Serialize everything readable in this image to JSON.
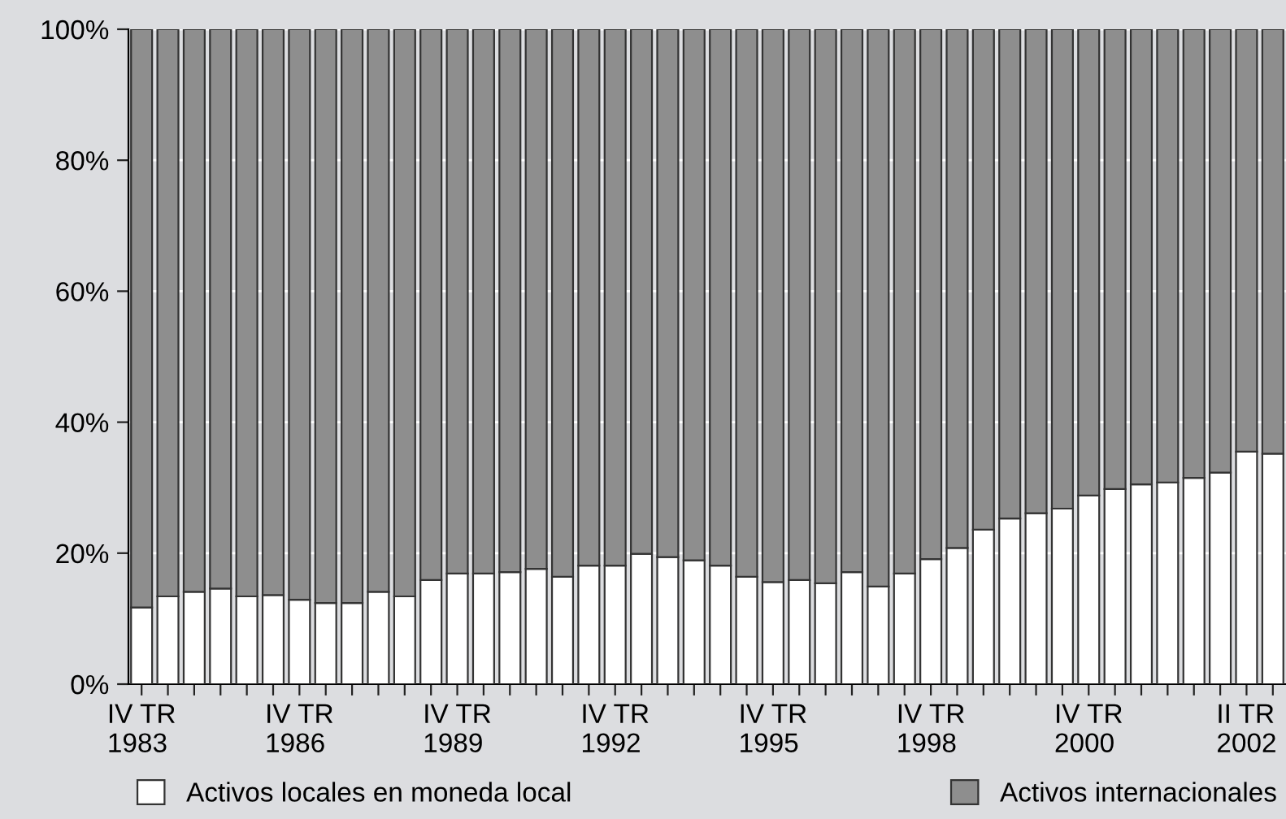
{
  "chart_data": {
    "type": "bar",
    "stacked": true,
    "categories": [
      "IV TR\n1983",
      null,
      null,
      null,
      null,
      null,
      "IV TR\n1986",
      null,
      null,
      null,
      null,
      null,
      "IV TR\n1989",
      null,
      null,
      null,
      null,
      null,
      "IV TR\n1992",
      null,
      null,
      null,
      null,
      null,
      "IV TR\n1995",
      null,
      null,
      null,
      null,
      null,
      "IV TR\n1998",
      null,
      null,
      null,
      null,
      null,
      "IV TR\n2000",
      null,
      null,
      null,
      null,
      null,
      "II TR\n2002",
      null
    ],
    "series": [
      {
        "name": "Activos locales en moneda local",
        "color": "#ffffff",
        "values": [
          11.7,
          13.4,
          14.1,
          14.6,
          13.4,
          13.6,
          12.9,
          12.4,
          12.4,
          14.1,
          13.4,
          15.9,
          16.9,
          16.9,
          17.1,
          17.6,
          16.4,
          18.1,
          18.1,
          19.9,
          19.4,
          18.9,
          18.1,
          16.4,
          15.6,
          15.9,
          15.4,
          17.1,
          14.9,
          16.9,
          19.1,
          20.8,
          23.6,
          25.3,
          26.1,
          26.8,
          28.8,
          29.8,
          30.5,
          30.8,
          31.5,
          32.3,
          35.5,
          35.2
        ]
      },
      {
        "name": "Activos internacionales",
        "color": "#8e8e8e",
        "values": [
          88.3,
          86.6,
          85.9,
          85.4,
          86.6,
          86.4,
          87.1,
          87.6,
          87.6,
          85.9,
          86.6,
          84.1,
          83.1,
          83.1,
          82.9,
          82.4,
          83.6,
          81.9,
          81.9,
          80.1,
          80.6,
          81.1,
          81.9,
          83.6,
          84.4,
          84.1,
          84.6,
          82.9,
          85.1,
          83.1,
          80.9,
          79.2,
          76.4,
          74.7,
          73.9,
          73.2,
          71.2,
          70.2,
          69.5,
          69.2,
          68.5,
          67.7,
          64.5,
          64.8
        ]
      }
    ],
    "ylim": [
      0,
      100
    ],
    "yticks": [
      {
        "value": 0,
        "label": "0%"
      },
      {
        "value": 20,
        "label": "20%"
      },
      {
        "value": 40,
        "label": "40%"
      },
      {
        "value": 60,
        "label": "60%"
      },
      {
        "value": 80,
        "label": "80%"
      },
      {
        "value": 100,
        "label": "100%"
      }
    ],
    "grid": "y",
    "legend": "bottom"
  }
}
